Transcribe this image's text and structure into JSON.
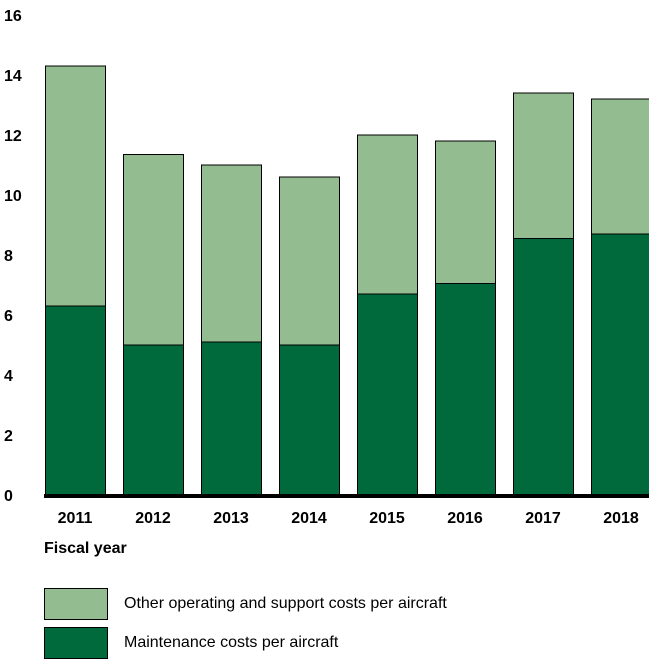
{
  "chart_data": {
    "type": "bar",
    "stacked": true,
    "categories": [
      "2011",
      "2012",
      "2013",
      "2014",
      "2015",
      "2016",
      "2017",
      "2018"
    ],
    "series": [
      {
        "name": "Maintenance costs per aircraft",
        "color": "#006a3d",
        "values": [
          6.3,
          5.0,
          5.1,
          5.0,
          6.7,
          7.05,
          8.55,
          8.7
        ]
      },
      {
        "name": "Other operating and support costs per aircraft",
        "color": "#93bd91",
        "values": [
          8.0,
          6.35,
          5.9,
          5.6,
          5.3,
          4.75,
          4.85,
          4.5
        ]
      }
    ],
    "xlabel": "Fiscal year",
    "ylabel": "",
    "ylim": [
      0,
      16
    ],
    "yticks": [
      "0",
      "2",
      "4",
      "6",
      "8",
      "10",
      "12",
      "14",
      "16"
    ],
    "grid": false,
    "legend_position": "bottom"
  }
}
